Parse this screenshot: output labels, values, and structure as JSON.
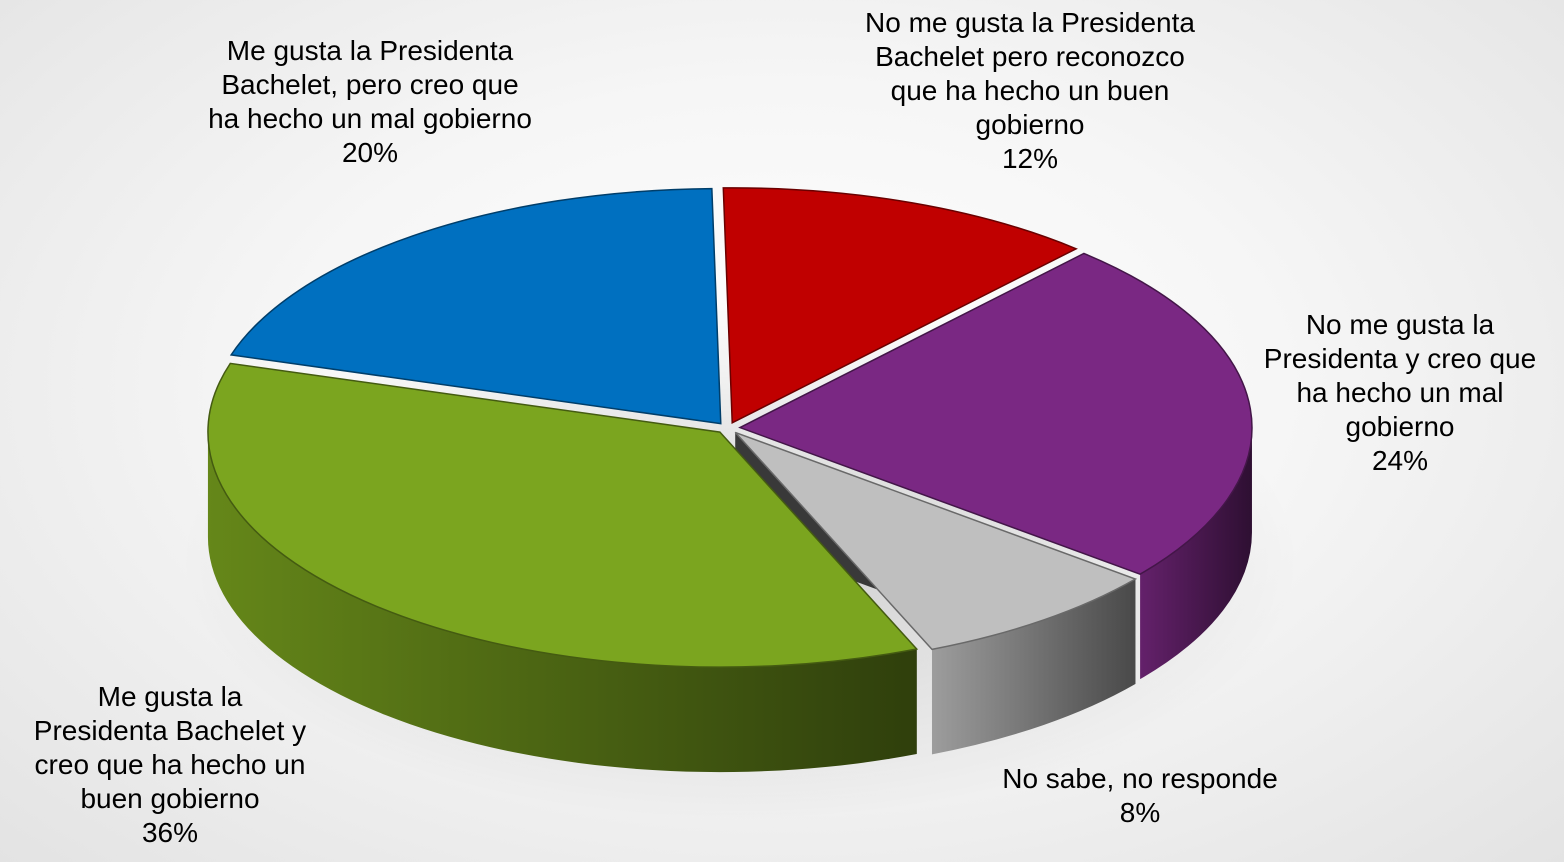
{
  "chart_data": {
    "type": "pie",
    "style": "3d-exploded",
    "title": "",
    "slices": [
      {
        "label": "No me gusta la Presidenta Bachelet pero reconozco que ha hecho un buen gobierno",
        "label_lines": [
          "No me gusta la Presidenta",
          "Bachelet pero reconozco",
          "que ha hecho un buen",
          "gobierno"
        ],
        "value": 12,
        "value_label": "12%",
        "color": "#C00000"
      },
      {
        "label": "No me gusta la Presidenta y creo que ha hecho un mal gobierno",
        "label_lines": [
          "No me gusta la",
          "Presidenta y creo que",
          "ha hecho un mal",
          "gobierno"
        ],
        "value": 24,
        "value_label": "24%",
        "color": "#7A2883"
      },
      {
        "label": "No sabe, no responde",
        "label_lines": [
          "No sabe, no responde"
        ],
        "value": 8,
        "value_label": "8%",
        "color": "#BFBFBF"
      },
      {
        "label": "Me gusta la Presidenta Bachelet y creo que ha hecho un buen gobierno",
        "label_lines": [
          "Me gusta la",
          "Presidenta Bachelet y",
          "creo que ha hecho un",
          "buen gobierno"
        ],
        "value": 36,
        "value_label": "36%",
        "color": "#7BA51F"
      },
      {
        "label": "Me gusta la Presidenta Bachelet, pero creo que ha hecho un mal gobierno",
        "label_lines": [
          "Me gusta la Presidenta",
          "Bachelet, pero creo que",
          "ha hecho un mal gobierno"
        ],
        "value": 20,
        "value_label": "20%",
        "color": "#0070C0"
      }
    ]
  }
}
